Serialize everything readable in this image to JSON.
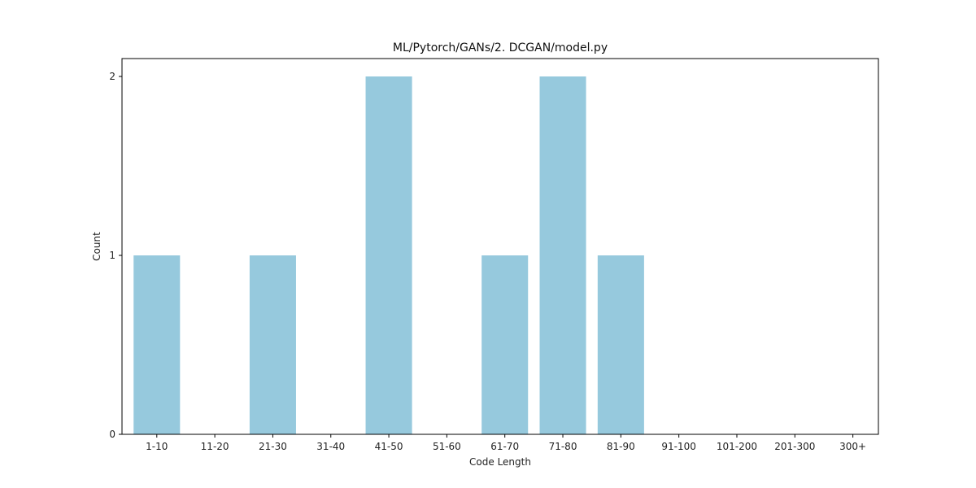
{
  "chart_data": {
    "type": "bar",
    "title": "ML/Pytorch/GANs/2. DCGAN/model.py",
    "xlabel": "Code Length",
    "ylabel": "Count",
    "categories": [
      "1-10",
      "11-20",
      "21-30",
      "31-40",
      "41-50",
      "51-60",
      "61-70",
      "71-80",
      "81-90",
      "91-100",
      "101-200",
      "201-300",
      "300+"
    ],
    "values": [
      1,
      0,
      1,
      0,
      2,
      0,
      1,
      2,
      1,
      0,
      0,
      0,
      0
    ],
    "ylim": [
      0,
      2.1
    ],
    "yticks": [
      0,
      1,
      2
    ],
    "grid": false,
    "legend": "none",
    "bar_color": "#96c9dd"
  }
}
